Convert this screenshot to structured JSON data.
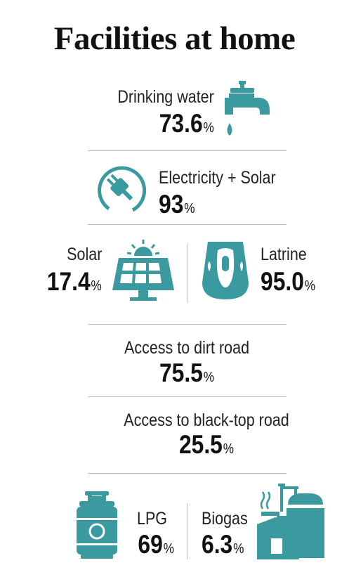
{
  "title": "Facilities at home",
  "accent_color": "#3a9aa0",
  "items": {
    "drinking_water": {
      "label": "Drinking water",
      "value": "73.6",
      "unit": "%",
      "icon": "water-tap-icon"
    },
    "electricity_solar": {
      "label": "Electricity + Solar",
      "value": "93",
      "unit": "%",
      "icon": "power-plug-icon"
    },
    "solar": {
      "label": "Solar",
      "value": "17.4",
      "unit": "%",
      "icon": "solar-panel-icon"
    },
    "latrine": {
      "label": "Latrine",
      "value": "95.0",
      "unit": "%",
      "icon": "squat-toilet-icon"
    },
    "dirt_road": {
      "label": "Access to dirt road",
      "value": "75.5",
      "unit": "%"
    },
    "blacktop_road": {
      "label": "Access to black-top road",
      "value": "25.5",
      "unit": "%"
    },
    "lpg": {
      "label": "LPG",
      "value": "69",
      "unit": "%",
      "icon": "gas-cylinder-icon"
    },
    "biogas": {
      "label": "Biogas",
      "value": "6.3",
      "unit": "%",
      "icon": "biogas-plant-icon"
    }
  }
}
